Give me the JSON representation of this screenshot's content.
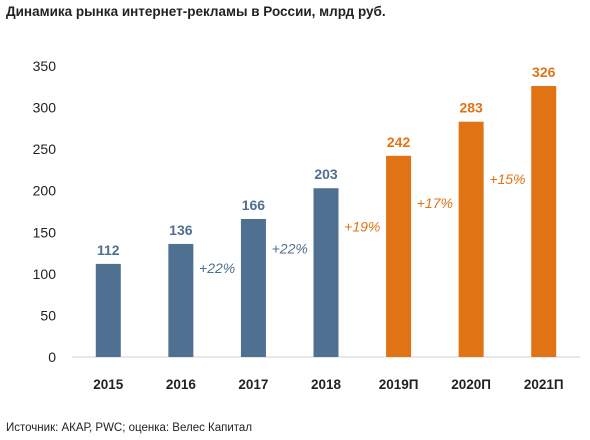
{
  "page": {
    "title": "Динамика рынка интернет-рекламы в России, млрд руб.",
    "source": "Источник: АКАР, PWC; оценка: Велес Капитал"
  },
  "chart_data": {
    "type": "bar",
    "title": "Динамика рынка интернет-рекламы в России, млрд руб.",
    "xlabel": "",
    "ylabel": "",
    "categories": [
      "2015",
      "2016",
      "2017",
      "2018",
      "2019П",
      "2020П",
      "2021П"
    ],
    "values": [
      112,
      136,
      166,
      203,
      242,
      283,
      326
    ],
    "data_labels": [
      "112",
      "136",
      "166",
      "203",
      "242",
      "283",
      "326"
    ],
    "bar_colors": [
      "#4f7090",
      "#4f7090",
      "#4f7090",
      "#4f7090",
      "#e07314",
      "#e07314",
      "#e07314"
    ],
    "growth_labels": [
      {
        "between": [
          1,
          2
        ],
        "text": "+22%",
        "color": "#4f7090"
      },
      {
        "between": [
          2,
          3
        ],
        "text": "+22%",
        "color": "#4f7090"
      },
      {
        "between": [
          3,
          4
        ],
        "text": "+19%",
        "color": "#e07314"
      },
      {
        "between": [
          4,
          5
        ],
        "text": "+17%",
        "color": "#e07314"
      },
      {
        "between": [
          5,
          6
        ],
        "text": "+15%",
        "color": "#e07314"
      }
    ],
    "ylim": [
      0,
      350
    ],
    "yticks": [
      "0",
      "50",
      "100",
      "150",
      "200",
      "250",
      "300",
      "350"
    ],
    "grid": false,
    "legend": "none"
  }
}
